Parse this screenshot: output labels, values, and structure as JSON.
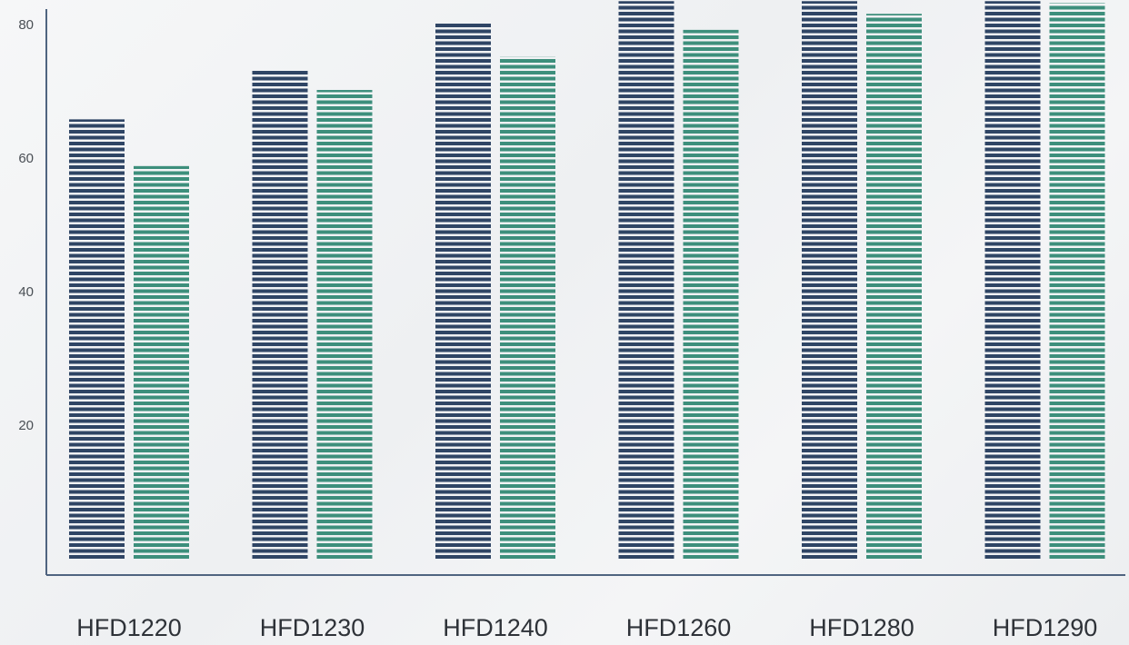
{
  "chart_data": {
    "type": "bar",
    "categories": [
      "HFD1220",
      "HFD1230",
      "HFD1240",
      "HFD1260",
      "HFD1280",
      "HFD1290"
    ],
    "series": [
      {
        "values": [
          65.8,
          73.2,
          80.3,
          83.5,
          83.5,
          83.5
        ]
      },
      {
        "values": [
          58.8,
          70.2,
          75.2,
          79.2,
          81.6,
          83.2
        ]
      }
    ],
    "yticks": [
      20,
      40,
      60,
      80
    ],
    "ylim": [
      0,
      83.5
    ],
    "grid": false,
    "legend": "none",
    "colors": [
      "#2f4565",
      "#3d8f7c"
    ]
  }
}
